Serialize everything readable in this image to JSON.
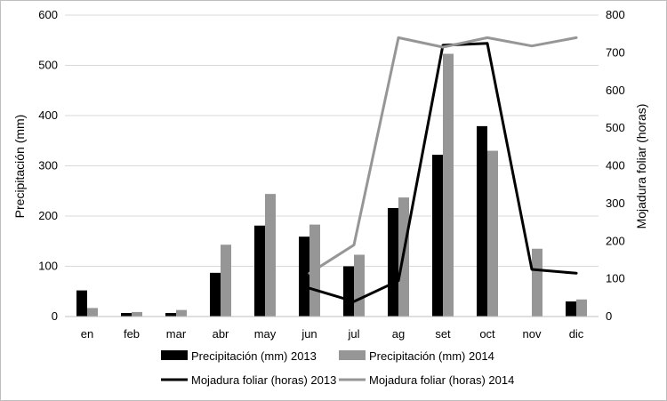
{
  "chart_data": {
    "type": "bar",
    "categories": [
      "en",
      "feb",
      "mar",
      "abr",
      "may",
      "jun",
      "jul",
      "ag",
      "set",
      "oct",
      "nov",
      "dic"
    ],
    "series": [
      {
        "name": "Precipitación (mm) 2013",
        "kind": "bar",
        "axis": "left",
        "color": "#000000",
        "values": [
          52,
          7,
          7,
          87,
          181,
          159,
          100,
          216,
          322,
          379,
          0,
          30
        ]
      },
      {
        "name": "Precipitación (mm) 2014",
        "kind": "bar",
        "axis": "left",
        "color": "#969696",
        "values": [
          17,
          9,
          13,
          143,
          244,
          183,
          123,
          237,
          523,
          330,
          135,
          34
        ]
      },
      {
        "name": "Mojadura foliar (horas) 2013",
        "kind": "line",
        "axis": "right",
        "color": "#000000",
        "values": [
          null,
          null,
          null,
          null,
          null,
          75,
          40,
          95,
          720,
          725,
          125,
          115
        ]
      },
      {
        "name": "Mojadura foliar (horas) 2014",
        "kind": "line",
        "axis": "right",
        "color": "#969696",
        "values": [
          null,
          null,
          null,
          null,
          null,
          115,
          190,
          740,
          715,
          740,
          718,
          740
        ]
      }
    ],
    "ylabel": "Precipitación (mm)",
    "y2label": "Mojadura foliar (horas)",
    "ylim": [
      0,
      600
    ],
    "y2lim": [
      0,
      800
    ],
    "yticks": [
      "0",
      "100",
      "200",
      "300",
      "400",
      "500",
      "600"
    ],
    "y2ticks": [
      "0",
      "100",
      "200",
      "300",
      "400",
      "500",
      "600",
      "700",
      "800"
    ],
    "grid": true,
    "legend": "bottom"
  }
}
